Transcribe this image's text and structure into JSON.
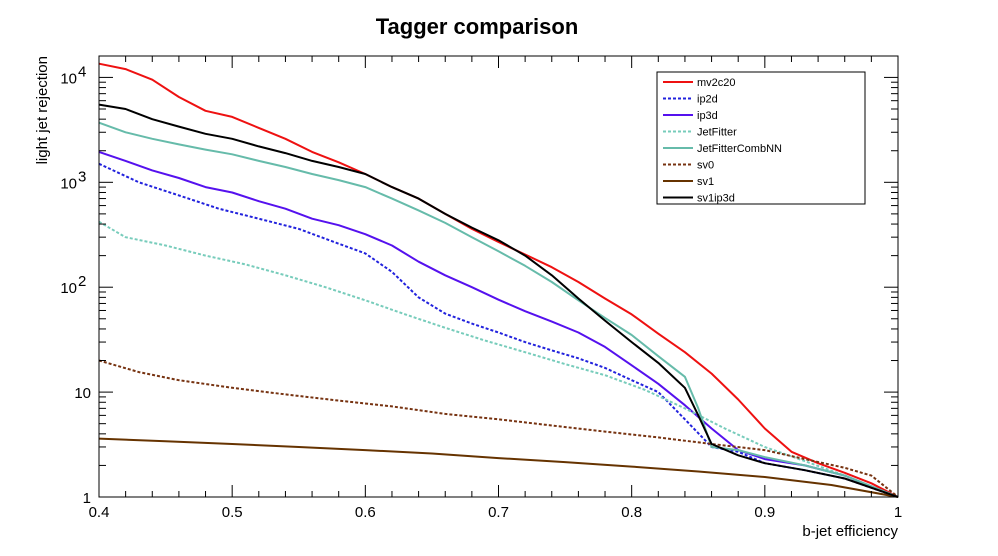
{
  "chart_data": {
    "type": "line",
    "title": "Tagger comparison",
    "xlabel": "b-jet efficiency",
    "ylabel": "light jet rejection",
    "xlim": [
      0.4,
      1.0
    ],
    "ylim": [
      1,
      16000
    ],
    "yscale": "log",
    "grid": false,
    "legend_position": "top-right",
    "x_ticks": [
      {
        "value": 0.4,
        "label": "0.4"
      },
      {
        "value": 0.5,
        "label": "0.5"
      },
      {
        "value": 0.6,
        "label": "0.6"
      },
      {
        "value": 0.7,
        "label": "0.7"
      },
      {
        "value": 0.8,
        "label": "0.8"
      },
      {
        "value": 0.9,
        "label": "0.9"
      },
      {
        "value": 1.0,
        "label": "1"
      }
    ],
    "y_ticks": [
      {
        "value": 1,
        "label": "1",
        "sup": ""
      },
      {
        "value": 10,
        "label": "10",
        "sup": ""
      },
      {
        "value": 100,
        "label": "10",
        "sup": "2"
      },
      {
        "value": 1000,
        "label": "10",
        "sup": "3"
      },
      {
        "value": 10000,
        "label": "10",
        "sup": "4"
      }
    ],
    "series": [
      {
        "name": "mv2c20",
        "color": "#ee1111",
        "dash": "solid",
        "x": [
          0.4,
          0.42,
          0.44,
          0.46,
          0.48,
          0.5,
          0.52,
          0.54,
          0.56,
          0.58,
          0.6,
          0.62,
          0.64,
          0.66,
          0.68,
          0.7,
          0.72,
          0.74,
          0.76,
          0.78,
          0.8,
          0.82,
          0.84,
          0.86,
          0.88,
          0.9,
          0.92,
          0.94,
          0.96,
          0.98,
          1.0
        ],
        "y": [
          13500,
          12000,
          9500,
          6500,
          4800,
          4200,
          3300,
          2600,
          1950,
          1550,
          1200,
          900,
          700,
          500,
          360,
          270,
          205,
          155,
          112,
          78,
          55,
          36,
          24,
          15,
          8.5,
          4.5,
          2.7,
          2.1,
          1.7,
          1.35,
          1.0
        ]
      },
      {
        "name": "ip2d",
        "color": "#2222dd",
        "dash": "dashed",
        "x": [
          0.4,
          0.43,
          0.46,
          0.49,
          0.52,
          0.55,
          0.58,
          0.6,
          0.62,
          0.64,
          0.66,
          0.68,
          0.7,
          0.72,
          0.74,
          0.76,
          0.78,
          0.8,
          0.82,
          0.84,
          0.86,
          0.88,
          0.9,
          0.93,
          0.96,
          1.0
        ],
        "y": [
          1500,
          1000,
          750,
          560,
          450,
          360,
          260,
          210,
          140,
          80,
          56,
          45,
          37,
          30,
          25,
          21,
          17,
          13,
          10,
          5.5,
          3.0,
          2.7,
          2.1,
          1.8,
          1.5,
          1.0
        ]
      },
      {
        "name": "ip3d",
        "color": "#5511ee",
        "dash": "solid",
        "x": [
          0.4,
          0.42,
          0.44,
          0.46,
          0.48,
          0.5,
          0.52,
          0.54,
          0.56,
          0.58,
          0.6,
          0.62,
          0.64,
          0.66,
          0.68,
          0.7,
          0.72,
          0.74,
          0.76,
          0.78,
          0.8,
          0.82,
          0.84,
          0.86,
          0.88,
          0.9,
          0.93,
          0.96,
          1.0
        ],
        "y": [
          1950,
          1600,
          1300,
          1100,
          900,
          800,
          660,
          560,
          450,
          390,
          320,
          250,
          175,
          130,
          100,
          76,
          59,
          47,
          37,
          27,
          18,
          12,
          7.5,
          4.5,
          2.8,
          2.3,
          2.0,
          1.6,
          1.0
        ]
      },
      {
        "name": "JetFitter",
        "color": "#77ccbb",
        "dash": "dashed",
        "x": [
          0.4,
          0.42,
          0.45,
          0.48,
          0.51,
          0.54,
          0.57,
          0.6,
          0.63,
          0.66,
          0.69,
          0.72,
          0.75,
          0.78,
          0.81,
          0.84,
          0.87,
          0.9,
          0.93,
          0.96,
          1.0
        ],
        "y": [
          420,
          300,
          250,
          200,
          165,
          130,
          100,
          75,
          55,
          41,
          31,
          24,
          18.5,
          14.5,
          10.5,
          7.0,
          4.5,
          3.0,
          2.2,
          1.6,
          1.0
        ]
      },
      {
        "name": "JetFitterCombNN",
        "color": "#66bbaa",
        "dash": "solid",
        "x": [
          0.4,
          0.42,
          0.44,
          0.46,
          0.48,
          0.5,
          0.52,
          0.54,
          0.56,
          0.58,
          0.6,
          0.62,
          0.64,
          0.66,
          0.68,
          0.7,
          0.72,
          0.74,
          0.76,
          0.78,
          0.8,
          0.82,
          0.84,
          0.85,
          0.86,
          0.88,
          0.9,
          0.93,
          0.96,
          1.0
        ],
        "y": [
          3700,
          3000,
          2600,
          2300,
          2050,
          1850,
          1600,
          1400,
          1200,
          1050,
          900,
          700,
          540,
          410,
          300,
          220,
          160,
          112,
          75,
          51,
          35,
          22,
          14,
          7.0,
          3.0,
          2.8,
          2.4,
          2.0,
          1.6,
          1.0
        ]
      },
      {
        "name": "sv0",
        "color": "#773311",
        "dash": "dashed",
        "x": [
          0.4,
          0.43,
          0.46,
          0.5,
          0.54,
          0.58,
          0.62,
          0.66,
          0.7,
          0.74,
          0.78,
          0.82,
          0.86,
          0.9,
          0.93,
          0.96,
          0.98,
          1.0
        ],
        "y": [
          20,
          15.5,
          13,
          11,
          9.5,
          8.3,
          7.3,
          6.2,
          5.5,
          4.8,
          4.2,
          3.7,
          3.2,
          2.8,
          2.3,
          1.9,
          1.6,
          1.0
        ]
      },
      {
        "name": "sv1",
        "color": "#663300",
        "dash": "solid",
        "x": [
          0.4,
          0.45,
          0.5,
          0.55,
          0.6,
          0.65,
          0.7,
          0.75,
          0.8,
          0.85,
          0.9,
          0.95,
          1.0
        ],
        "y": [
          3.6,
          3.4,
          3.2,
          3.0,
          2.8,
          2.6,
          2.35,
          2.15,
          1.95,
          1.75,
          1.55,
          1.3,
          1.0
        ]
      },
      {
        "name": "sv1ip3d",
        "color": "#000000",
        "dash": "solid",
        "x": [
          0.4,
          0.42,
          0.44,
          0.46,
          0.48,
          0.5,
          0.52,
          0.54,
          0.56,
          0.58,
          0.6,
          0.62,
          0.64,
          0.66,
          0.68,
          0.7,
          0.72,
          0.74,
          0.76,
          0.78,
          0.8,
          0.82,
          0.84,
          0.85,
          0.86,
          0.88,
          0.9,
          0.93,
          0.96,
          1.0
        ],
        "y": [
          5500,
          5000,
          4000,
          3400,
          2900,
          2600,
          2200,
          1900,
          1600,
          1400,
          1200,
          900,
          700,
          500,
          370,
          280,
          200,
          130,
          78,
          48,
          30,
          19,
          11,
          6.0,
          3.2,
          2.5,
          2.1,
          1.8,
          1.5,
          1.0
        ]
      }
    ]
  }
}
